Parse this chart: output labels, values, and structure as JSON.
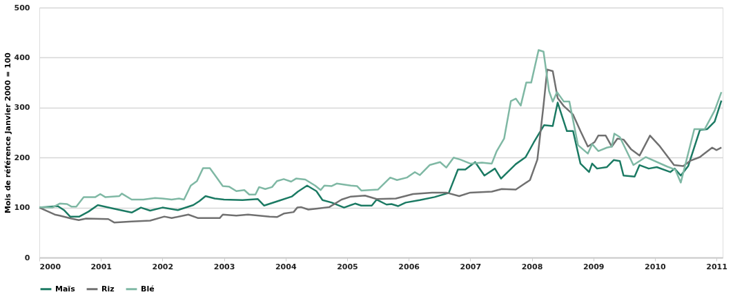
{
  "chart_data": {
    "type": "line",
    "ylabel": "Mois de référence Janvier 2000 = 100",
    "xlim": [
      2000,
      2011.1
    ],
    "xticks": [
      2000,
      2001,
      2002,
      2003,
      2004,
      2005,
      2006,
      2007,
      2008,
      2009,
      2010,
      2011
    ],
    "ylim": [
      0,
      500
    ],
    "yticks": [
      0,
      100,
      200,
      300,
      400,
      500
    ],
    "grid": "y",
    "legend": "bottom",
    "line_style": "solid",
    "marker": "none",
    "series": [
      {
        "name": "Maïs",
        "color": "#1b7a63",
        "x": [
          2000,
          2000.3,
          2000.4,
          2000.5,
          2000.65,
          2000.8,
          2000.95,
          2001.2,
          2001.5,
          2001.65,
          2001.8,
          2002,
          2002.25,
          2002.5,
          2002.6,
          2002.7,
          2002.85,
          2003,
          2003.3,
          2003.55,
          2003.65,
          2003.9,
          2004.1,
          2004.2,
          2004.35,
          2004.5,
          2004.6,
          2004.75,
          2004.95,
          2005.13,
          2005.23,
          2005.4,
          2005.48,
          2005.64,
          2005.72,
          2005.83,
          2005.95,
          2006.18,
          2006.42,
          2006.61,
          2006.65,
          2006.8,
          2006.92,
          2007.08,
          2007.23,
          2007.4,
          2007.5,
          2007.74,
          2007.9,
          2008.03,
          2008.2,
          2008.34,
          2008.42,
          2008.57,
          2008.67,
          2008.79,
          2008.93,
          2008.98,
          2009.06,
          2009.22,
          2009.33,
          2009.43,
          2009.49,
          2009.67,
          2009.75,
          2009.9,
          2010.03,
          2010.25,
          2010.32,
          2010.42,
          2010.54,
          2010.73,
          2010.85,
          2010.97,
          2011.08
        ],
        "values": [
          100,
          103,
          95,
          82,
          82,
          92,
          105,
          98,
          90,
          100,
          94,
          100,
          95,
          105,
          113,
          123,
          118,
          116,
          115,
          117,
          104,
          114,
          122,
          132,
          144,
          133,
          115,
          110,
          100,
          108,
          104,
          104,
          116,
          106,
          107,
          103,
          110,
          115,
          121,
          128,
          129,
          176,
          176,
          191,
          164,
          178,
          158,
          187,
          201,
          230,
          265,
          263,
          310,
          253,
          253,
          188,
          171,
          188,
          178,
          181,
          195,
          193,
          164,
          162,
          185,
          178,
          181,
          171,
          178,
          164,
          183,
          255,
          257,
          272,
          314
        ]
      },
      {
        "name": "Riz",
        "color": "#707070",
        "x": [
          2000,
          2000.25,
          2000.33,
          2000.52,
          2000.64,
          2000.76,
          2001.12,
          2001.22,
          2001.5,
          2001.8,
          2002.03,
          2002.15,
          2002.42,
          2002.58,
          2002.93,
          2002.98,
          2003.2,
          2003.39,
          2003.74,
          2003.86,
          2003.97,
          2004.13,
          2004.19,
          2004.25,
          2004.37,
          2004.52,
          2004.71,
          2004.91,
          2005.06,
          2005.29,
          2005.48,
          2005.79,
          2006.07,
          2006.38,
          2006.61,
          2006.82,
          2007.0,
          2007.35,
          2007.51,
          2007.74,
          2007.97,
          2008.09,
          2008.19,
          2008.25,
          2008.34,
          2008.42,
          2008.52,
          2008.67,
          2008.79,
          2008.91,
          2009.02,
          2009.08,
          2009.2,
          2009.3,
          2009.39,
          2009.49,
          2009.61,
          2009.75,
          2009.92,
          2010.07,
          2010.31,
          2010.46,
          2010.58,
          2010.73,
          2010.93,
          2011.0,
          2011.08
        ],
        "values": [
          100,
          86,
          84,
          78,
          75,
          78,
          77,
          70,
          72,
          74,
          82,
          79,
          86,
          79,
          79,
          86,
          84,
          86,
          82,
          81,
          88,
          91,
          100,
          101,
          96,
          98,
          101,
          116,
          122,
          124,
          117,
          118,
          127,
          130,
          130,
          123,
          130,
          132,
          137,
          136,
          155,
          196,
          304,
          376,
          373,
          319,
          303,
          286,
          253,
          222,
          231,
          244,
          244,
          222,
          238,
          236,
          217,
          204,
          244,
          224,
          185,
          183,
          194,
          201,
          220,
          215,
          220
        ]
      },
      {
        "name": "Blé",
        "color": "#7fb8a4",
        "x": [
          2000,
          2000.21,
          2000.33,
          2000.45,
          2000.52,
          2000.6,
          2000.72,
          2000.91,
          2000.99,
          2001.07,
          2001.3,
          2001.34,
          2001.5,
          2001.69,
          2001.88,
          2002.0,
          2002.15,
          2002.27,
          2002.35,
          2002.46,
          2002.56,
          2002.66,
          2002.77,
          2002.98,
          2003.08,
          2003.2,
          2003.33,
          2003.41,
          2003.51,
          2003.57,
          2003.67,
          2003.78,
          2003.86,
          2003.97,
          2004.09,
          2004.17,
          2004.32,
          2004.48,
          2004.57,
          2004.63,
          2004.75,
          2004.83,
          2005.06,
          2005.16,
          2005.23,
          2005.5,
          2005.7,
          2005.81,
          2005.97,
          2006.1,
          2006.18,
          2006.34,
          2006.51,
          2006.61,
          2006.73,
          2006.84,
          2007.0,
          2007.19,
          2007.35,
          2007.43,
          2007.55,
          2007.66,
          2007.74,
          2007.82,
          2007.91,
          2007.99,
          2008.11,
          2008.19,
          2008.28,
          2008.34,
          2008.41,
          2008.52,
          2008.61,
          2008.75,
          2008.91,
          2008.98,
          2009.08,
          2009.22,
          2009.3,
          2009.34,
          2009.43,
          2009.65,
          2009.85,
          2010.2,
          2010.33,
          2010.42,
          2010.64,
          2010.81,
          2010.97,
          2011.08
        ],
        "values": [
          101,
          100,
          108,
          107,
          102,
          102,
          121,
          121,
          127,
          121,
          123,
          128,
          116,
          116,
          119,
          118,
          116,
          118,
          116,
          144,
          153,
          179,
          179,
          143,
          142,
          133,
          135,
          126,
          126,
          141,
          137,
          141,
          153,
          157,
          152,
          158,
          156,
          144,
          135,
          144,
          143,
          148,
          144,
          143,
          134,
          136,
          160,
          155,
          160,
          171,
          165,
          185,
          191,
          180,
          200,
          196,
          188,
          190,
          188,
          213,
          238,
          313,
          318,
          304,
          350,
          350,
          415,
          412,
          333,
          312,
          331,
          312,
          312,
          225,
          208,
          227,
          213,
          220,
          222,
          248,
          241,
          185,
          201,
          182,
          176,
          150,
          257,
          257,
          294,
          331
        ]
      }
    ]
  }
}
